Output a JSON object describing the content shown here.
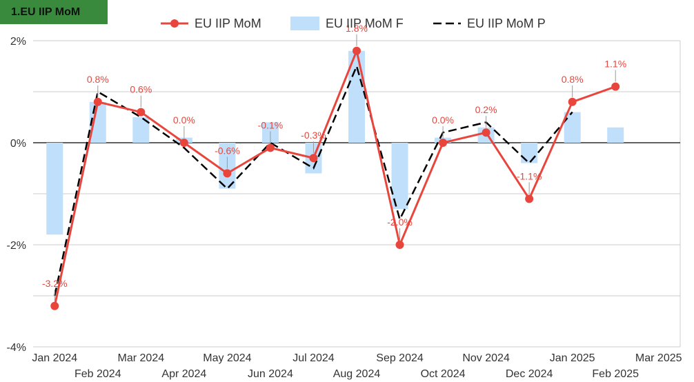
{
  "badge": "1.EU IIP MoM",
  "colors": {
    "line": "#e8453c",
    "bar": "#bfdffb",
    "dash": "#000000",
    "grid": "#cccccc",
    "badge": "#3a8a3e"
  },
  "chart_data": {
    "type": "bar+line",
    "title": "1.EU IIP MoM",
    "categories": [
      "Jan 2024",
      "Feb 2024",
      "Mar 2024",
      "Apr 2024",
      "May 2024",
      "Jun 2024",
      "Jul 2024",
      "Aug 2024",
      "Sep 2024",
      "Oct 2024",
      "Nov 2024",
      "Dec 2024",
      "Jan 2025",
      "Feb 2025",
      "Mar 2025"
    ],
    "ylim": [
      -4,
      2
    ],
    "yticks": [
      2,
      0,
      -2,
      -4
    ],
    "ytick_labels": [
      "2%",
      "0%",
      "-2%",
      "-4%"
    ],
    "grid": true,
    "legend_position": "top",
    "series": [
      {
        "name": "EU IIP MoM",
        "kind": "line-marker",
        "values": [
          -3.2,
          0.8,
          0.6,
          0.0,
          -0.6,
          -0.1,
          -0.3,
          1.8,
          -2.0,
          0.0,
          0.2,
          -1.1,
          0.8,
          1.1,
          null
        ],
        "labels": [
          "-3.2%",
          "0.8%",
          "0.6%",
          "0.0%",
          "-0.6%",
          "-0.1%",
          "-0.3%",
          "1.8%",
          "-2.0%",
          "0.0%",
          "0.2%",
          "-1.1%",
          "0.8%",
          "1.1%",
          ""
        ]
      },
      {
        "name": "EU IIP MoM F",
        "kind": "bar",
        "values": [
          -1.8,
          0.8,
          0.5,
          0.1,
          -0.9,
          0.4,
          -0.6,
          1.8,
          -1.3,
          0.1,
          0.3,
          -0.4,
          0.6,
          0.3,
          null
        ]
      },
      {
        "name": "EU IIP MoM P",
        "kind": "dashed-line",
        "values": [
          -3.0,
          1.0,
          0.5,
          -0.1,
          -0.9,
          0.0,
          -0.5,
          1.5,
          -1.5,
          0.2,
          0.4,
          -0.4,
          0.6,
          null,
          null
        ]
      }
    ]
  }
}
